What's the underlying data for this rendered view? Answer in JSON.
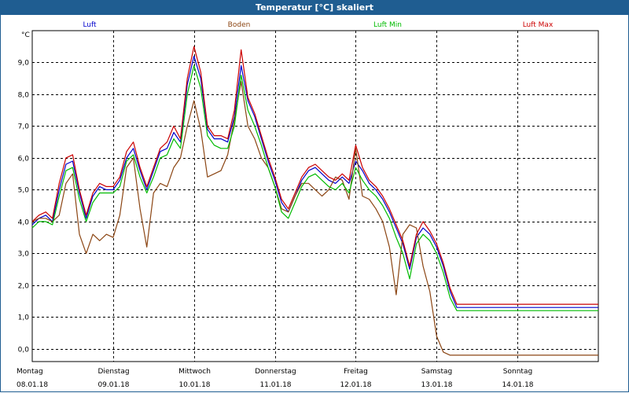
{
  "window": {
    "title": "Temperatur [°C] skaliert"
  },
  "chart_data": {
    "type": "line",
    "ylabel": "°C",
    "ylim": [
      -0.4,
      10.0
    ],
    "yticks": [
      0.0,
      1.0,
      2.0,
      3.0,
      4.0,
      5.0,
      6.0,
      7.0,
      8.0,
      9.0
    ],
    "ytick_labels": [
      "0,0",
      "1,0",
      "2,0",
      "3,0",
      "4,0",
      "5,0",
      "6,0",
      "7,0",
      "8,0",
      "9,0"
    ],
    "xlim": [
      0,
      7
    ],
    "x_days": [
      {
        "weekday": "Montag",
        "date": "08.01.18"
      },
      {
        "weekday": "Dienstag",
        "date": "09.01.18"
      },
      {
        "weekday": "Mittwoch",
        "date": "10.01.18"
      },
      {
        "weekday": "Donnerstag",
        "date": "11.01.18"
      },
      {
        "weekday": "Freitag",
        "date": "12.01.18"
      },
      {
        "weekday": "Samstag",
        "date": "13.01.18"
      },
      {
        "weekday": "Sonntag",
        "date": "14.01.18"
      }
    ],
    "grid": true,
    "legend_position": "top",
    "x": [
      0,
      0.083,
      0.167,
      0.25,
      0.333,
      0.417,
      0.5,
      0.583,
      0.667,
      0.75,
      0.833,
      0.917,
      1,
      1.083,
      1.167,
      1.25,
      1.333,
      1.417,
      1.5,
      1.583,
      1.667,
      1.75,
      1.833,
      1.917,
      2,
      2.083,
      2.167,
      2.25,
      2.333,
      2.417,
      2.5,
      2.583,
      2.667,
      2.75,
      2.833,
      2.917,
      3,
      3.083,
      3.167,
      3.25,
      3.333,
      3.417,
      3.5,
      3.583,
      3.667,
      3.75,
      3.833,
      3.917,
      4,
      4.083,
      4.167,
      4.25,
      4.333,
      4.417,
      4.5,
      4.583,
      4.667,
      4.75,
      4.833,
      4.917,
      5,
      5.083,
      5.167,
      5.25,
      5.333,
      5.417,
      5.5,
      5.583,
      5.667,
      5.75,
      5.833,
      5.917,
      6,
      6.083,
      6.167,
      6.25,
      6.333,
      6.417,
      6.5,
      6.583,
      6.667,
      6.75,
      6.833,
      6.917,
      7
    ],
    "series": [
      {
        "name": "Luft",
        "color": "#0000cc",
        "values": [
          3.9,
          4.1,
          4.2,
          4.0,
          5.0,
          5.8,
          5.9,
          4.9,
          4.1,
          4.8,
          5.1,
          5.0,
          5.0,
          5.3,
          6.0,
          6.3,
          5.6,
          5.0,
          5.6,
          6.2,
          6.3,
          6.8,
          6.5,
          8.3,
          9.2,
          8.5,
          6.9,
          6.6,
          6.6,
          6.5,
          7.3,
          8.9,
          7.8,
          7.3,
          6.6,
          5.9,
          5.3,
          4.6,
          4.3,
          4.8,
          5.3,
          5.6,
          5.7,
          5.5,
          5.3,
          5.2,
          5.4,
          5.2,
          5.9,
          5.6,
          5.2,
          5.0,
          4.7,
          4.3,
          3.8,
          3.3,
          2.5,
          3.5,
          3.8,
          3.6,
          3.2,
          2.6,
          1.8,
          1.3,
          1.3,
          1.3,
          1.3,
          1.3,
          1.3,
          1.3,
          1.3,
          1.3,
          1.3,
          1.3,
          1.3,
          1.3,
          1.3,
          1.3,
          1.3,
          1.3,
          1.3,
          1.3,
          1.3,
          1.3,
          1.3
        ]
      },
      {
        "name": "Boden",
        "color": "#8b4513",
        "values": [
          4.0,
          4.1,
          4.1,
          4.0,
          4.2,
          5.2,
          5.5,
          3.6,
          3.0,
          3.6,
          3.4,
          3.6,
          3.5,
          4.2,
          5.7,
          6.0,
          4.4,
          3.2,
          4.9,
          5.2,
          5.1,
          5.7,
          6.0,
          7.0,
          7.8,
          6.9,
          5.4,
          5.5,
          5.6,
          6.1,
          7.2,
          8.4,
          7.0,
          6.6,
          6.0,
          5.7,
          5.1,
          4.4,
          4.3,
          4.8,
          5.2,
          5.2,
          5.0,
          4.8,
          5.0,
          5.4,
          5.3,
          4.7,
          6.3,
          4.8,
          4.7,
          4.4,
          4.0,
          3.2,
          1.7,
          3.6,
          3.9,
          3.8,
          2.6,
          1.8,
          0.4,
          -0.1,
          -0.2,
          -0.2,
          -0.2,
          -0.2,
          -0.2,
          -0.2,
          -0.2,
          -0.2,
          -0.2,
          -0.2,
          -0.2,
          -0.2,
          -0.2,
          -0.2,
          -0.2,
          -0.2,
          -0.2,
          -0.2,
          -0.2,
          -0.2,
          -0.2,
          -0.2,
          -0.2
        ]
      },
      {
        "name": "Luft Min",
        "color": "#00bb00",
        "values": [
          3.8,
          4.0,
          4.0,
          3.9,
          4.8,
          5.6,
          5.7,
          4.7,
          4.0,
          4.6,
          4.9,
          4.9,
          4.9,
          5.1,
          5.9,
          6.1,
          5.4,
          4.9,
          5.4,
          6.0,
          6.1,
          6.6,
          6.3,
          8.0,
          8.9,
          8.2,
          6.7,
          6.4,
          6.3,
          6.3,
          7.0,
          8.6,
          7.5,
          7.0,
          6.4,
          5.7,
          5.1,
          4.3,
          4.1,
          4.6,
          5.1,
          5.4,
          5.5,
          5.3,
          5.1,
          5.0,
          5.2,
          4.9,
          5.7,
          5.3,
          5.0,
          4.8,
          4.5,
          4.1,
          3.5,
          3.0,
          2.2,
          3.3,
          3.6,
          3.4,
          3.0,
          2.4,
          1.6,
          1.2,
          1.2,
          1.2,
          1.2,
          1.2,
          1.2,
          1.2,
          1.2,
          1.2,
          1.2,
          1.2,
          1.2,
          1.2,
          1.2,
          1.2,
          1.2,
          1.2,
          1.2,
          1.2,
          1.2,
          1.2,
          1.2
        ]
      },
      {
        "name": "Luft Max",
        "color": "#cc0000",
        "values": [
          4.0,
          4.2,
          4.3,
          4.1,
          5.2,
          6.0,
          6.1,
          5.0,
          4.2,
          4.9,
          5.2,
          5.1,
          5.1,
          5.4,
          6.2,
          6.5,
          5.7,
          5.1,
          5.7,
          6.3,
          6.5,
          7.0,
          6.6,
          8.5,
          9.5,
          8.7,
          7.0,
          6.7,
          6.7,
          6.6,
          7.5,
          9.4,
          7.9,
          7.4,
          6.7,
          6.0,
          5.4,
          4.7,
          4.4,
          4.9,
          5.4,
          5.7,
          5.8,
          5.6,
          5.4,
          5.3,
          5.5,
          5.3,
          6.4,
          5.7,
          5.3,
          5.1,
          4.8,
          4.4,
          3.9,
          3.4,
          2.6,
          3.6,
          4.0,
          3.7,
          3.3,
          2.7,
          1.9,
          1.4,
          1.4,
          1.4,
          1.4,
          1.4,
          1.4,
          1.4,
          1.4,
          1.4,
          1.4,
          1.4,
          1.4,
          1.4,
          1.4,
          1.4,
          1.4,
          1.4,
          1.4,
          1.4,
          1.4,
          1.4,
          1.4
        ]
      }
    ]
  }
}
